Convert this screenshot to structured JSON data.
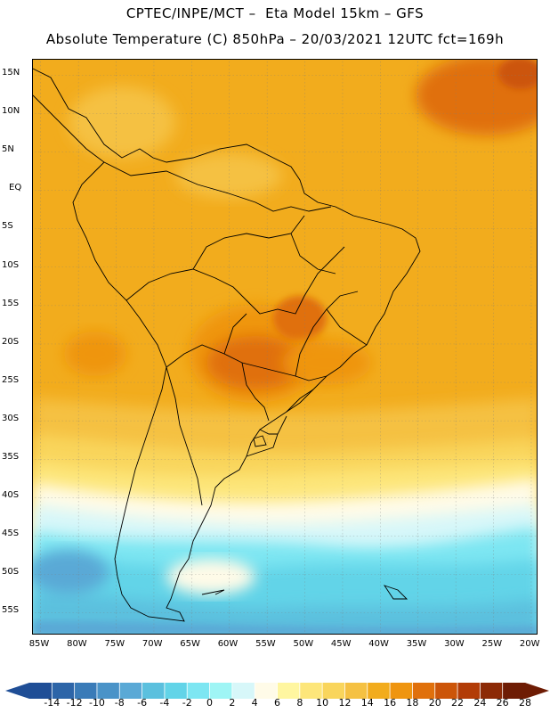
{
  "title": {
    "line1": "CPTEC/INPE/MCT –  Eta Model 15km – GFS",
    "line2": "Absolute Temperature (C) 850hPa – 20/03/2021 12UTC fct=169h"
  },
  "map": {
    "lat_labels": [
      "15N",
      "10N",
      "5N",
      "EQ",
      "5S",
      "10S",
      "15S",
      "20S",
      "25S",
      "30S",
      "35S",
      "40S",
      "45S",
      "50S",
      "55S"
    ],
    "lon_labels": [
      "85W",
      "80W",
      "75W",
      "70W",
      "65W",
      "60W",
      "55W",
      "50W",
      "45W",
      "40W",
      "35W",
      "30W",
      "25W",
      "20W"
    ],
    "extent": {
      "lon_min": -86,
      "lon_max": -19,
      "lat_min": -58,
      "lat_max": 17
    },
    "field": "Absolute Temperature (C) at 850hPa"
  },
  "colorbar": {
    "labels": [
      "-14",
      "-12",
      "-10",
      "-8",
      "-6",
      "-4",
      "-2",
      "0",
      "2",
      "4",
      "6",
      "8",
      "10",
      "12",
      "14",
      "16",
      "18",
      "20",
      "22",
      "24",
      "26",
      "28"
    ],
    "colors": [
      "#1f4e96",
      "#2d65a8",
      "#3a7bb8",
      "#4a93c8",
      "#5aa9d6",
      "#5bc0de",
      "#62d4e8",
      "#7de6f2",
      "#9ff5f5",
      "#d7f7f9",
      "#fffbe8",
      "#fff6a0",
      "#fde67a",
      "#f9d55c",
      "#f5c142",
      "#f2ac1d",
      "#ef9510",
      "#e0700b",
      "#cc5509",
      "#b23c07",
      "#8c2a06",
      "#6e1c04"
    ]
  }
}
